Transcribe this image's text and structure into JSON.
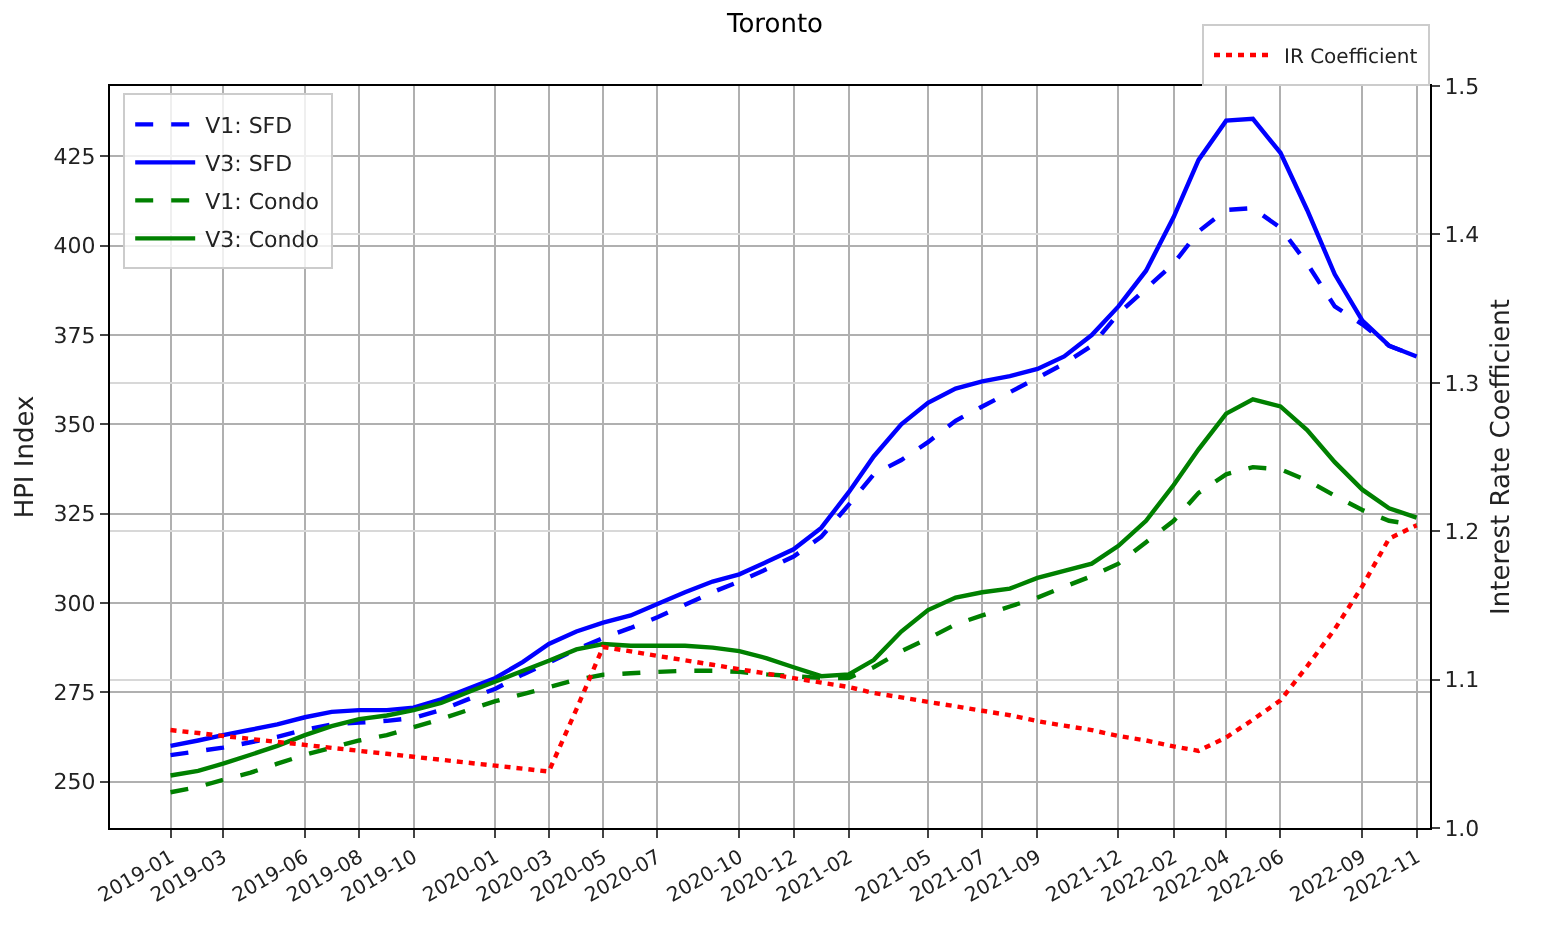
{
  "chart_data": {
    "type": "line",
    "title": "Toronto",
    "ylabel": "HPI Index",
    "y2label": "Interest Rate Coefficient",
    "x": [
      "2019-01",
      "2019-02",
      "2019-03",
      "2019-04",
      "2019-05",
      "2019-06",
      "2019-07",
      "2019-08",
      "2019-09",
      "2019-10",
      "2019-11",
      "2019-12",
      "2020-01",
      "2020-02",
      "2020-03",
      "2020-04",
      "2020-05",
      "2020-06",
      "2020-07",
      "2020-08",
      "2020-09",
      "2020-10",
      "2020-11",
      "2020-12",
      "2021-01",
      "2021-02",
      "2021-03",
      "2021-04",
      "2021-05",
      "2021-06",
      "2021-07",
      "2021-08",
      "2021-09",
      "2021-10",
      "2021-11",
      "2021-12",
      "2022-01",
      "2022-02",
      "2022-03",
      "2022-04",
      "2022-05",
      "2022-06",
      "2022-07",
      "2022-08",
      "2022-09",
      "2022-10",
      "2022-11"
    ],
    "series": [
      {
        "name": "V1: SFD",
        "color": "#0000ff",
        "line_style": "dashed",
        "values": [
          257.4,
          258.5,
          259.5,
          261,
          262.5,
          264.5,
          266,
          266.5,
          267,
          267.8,
          270,
          273,
          276,
          280,
          283.3,
          287,
          290.2,
          293,
          296,
          299.5,
          303,
          306,
          309.5,
          313,
          318.5,
          327.5,
          336,
          340,
          345,
          351,
          355,
          359,
          363,
          367,
          372,
          381,
          388,
          395,
          404,
          410,
          410.5,
          405,
          395,
          383,
          378,
          372,
          369
        ]
      },
      {
        "name": "V3: SFD",
        "color": "#0000ff",
        "line_style": "solid",
        "values": [
          260,
          261.5,
          263,
          264.5,
          266,
          268,
          269.5,
          270,
          270,
          270.7,
          273,
          276,
          279,
          283.5,
          288.5,
          292,
          294.5,
          296.5,
          299.7,
          303,
          306,
          308,
          311.5,
          315,
          321,
          331,
          341,
          350,
          356,
          360,
          362,
          363.5,
          365.5,
          369,
          375,
          383,
          393,
          408,
          424,
          435,
          435.5,
          426,
          410,
          392,
          379,
          372,
          369
        ]
      },
      {
        "name": "V1: Condo",
        "color": "#008000",
        "line_style": "dashed",
        "values": [
          247,
          248.5,
          250.5,
          252.5,
          255,
          257.5,
          259.5,
          261.5,
          263,
          265.2,
          267.5,
          270,
          272.5,
          274.5,
          276.4,
          278.5,
          279.9,
          280.3,
          280.7,
          281,
          281,
          280.7,
          280,
          279.5,
          279,
          279,
          282,
          286.5,
          290,
          294,
          296.5,
          299,
          301.5,
          304.5,
          307.5,
          311,
          317,
          323,
          330.8,
          336,
          338,
          337.4,
          334.3,
          330,
          326,
          323,
          321.8
        ]
      },
      {
        "name": "V3: Condo",
        "color": "#008000",
        "line_style": "solid",
        "values": [
          251.7,
          253,
          255,
          257.5,
          260,
          263,
          265.5,
          267.5,
          268.5,
          270,
          272,
          275,
          278,
          281,
          283.8,
          287,
          288.5,
          288,
          288,
          288,
          287.5,
          286.5,
          284.5,
          282,
          279.5,
          280,
          284,
          292,
          298,
          301.5,
          303,
          304,
          307,
          309,
          311,
          316,
          323,
          333,
          343,
          353,
          357,
          355,
          348.4,
          339.4,
          331.7,
          326.5,
          323.9
        ]
      },
      {
        "name": "IR Coefficient",
        "color": "#ff0000",
        "line_style": "dotted",
        "axis": "y2",
        "values": [
          1.066,
          1.064,
          1.062,
          1.06,
          1.058,
          1.056,
          1.054,
          1.052,
          1.05,
          1.048,
          1.046,
          1.044,
          1.042,
          1.04,
          1.038,
          1.08,
          1.122,
          1.119,
          1.116,
          1.113,
          1.11,
          1.107,
          1.104,
          1.101,
          1.098,
          1.095,
          1.091,
          1.088,
          1.085,
          1.082,
          1.079,
          1.076,
          1.072,
          1.069,
          1.066,
          1.062,
          1.059,
          1.055,
          1.052,
          1.061,
          1.073,
          1.086,
          1.109,
          1.134,
          1.163,
          1.195,
          1.204
        ]
      }
    ],
    "xlim": [
      "2018-10-25",
      "2022-11-16"
    ],
    "xticks": [
      "2019-01",
      "2019-03",
      "2019-06",
      "2019-08",
      "2019-10",
      "2020-01",
      "2020-03",
      "2020-05",
      "2020-07",
      "2020-10",
      "2020-12",
      "2021-02",
      "2021-05",
      "2021-07",
      "2021-09",
      "2021-12",
      "2022-02",
      "2022-04",
      "2022-06",
      "2022-09",
      "2022-11"
    ],
    "ylim": [
      237,
      444.7
    ],
    "yticks": [
      250,
      275,
      300,
      325,
      350,
      375,
      400,
      425
    ],
    "y2lim": [
      1.0,
      1.5
    ],
    "y2ticks": [
      {
        "value": 1.0,
        "label": "1.0"
      },
      {
        "value": 1.1,
        "label": "1.1"
      },
      {
        "value": 1.2,
        "label": "1.2"
      },
      {
        "value": 1.3,
        "label": "1.3"
      },
      {
        "value": 1.4,
        "label": "1.4"
      },
      {
        "value": 1.5,
        "label": "1.5"
      }
    ],
    "grid": true,
    "legend": "top left",
    "marker": "none"
  }
}
